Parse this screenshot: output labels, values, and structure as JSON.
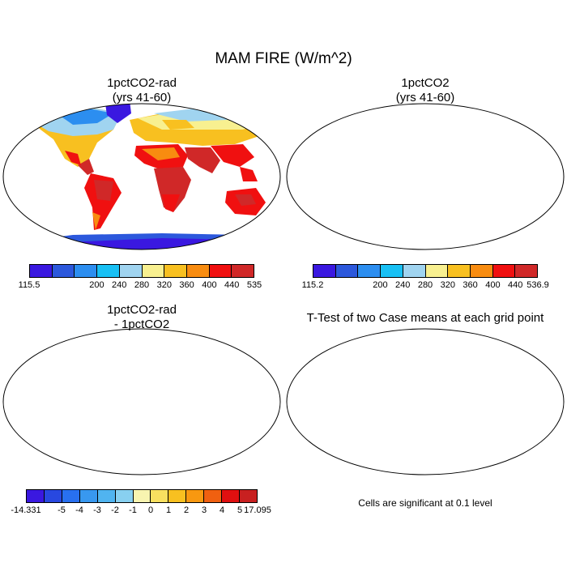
{
  "figure": {
    "title": "MAM FIRE (W/m^2)",
    "note": "Cells are significant at 0.1 level"
  },
  "panels": [
    {
      "title_line1": "1pctCO2-rad",
      "title_line2": "(yrs 41-60)",
      "kind": "field"
    },
    {
      "title_line1": "1pctCO2",
      "title_line2": "(yrs 41-60)",
      "kind": "field"
    },
    {
      "title_line1": "1pctCO2-rad",
      "title_line2": "- 1pctCO2",
      "kind": "difference"
    },
    {
      "title_line1": "T-Test of two Case means at each grid point",
      "title_line2": "",
      "kind": "significance"
    }
  ],
  "colorbars": [
    {
      "colors": [
        "#3a18e0",
        "#2c58dc",
        "#2c8ef0",
        "#18c0f4",
        "#a0d4f0",
        "#f8f090",
        "#f8c020",
        "#f88c10",
        "#f01010",
        "#d02828"
      ],
      "labels": [
        "115.5",
        "200",
        "240",
        "280",
        "320",
        "360",
        "400",
        "440",
        "535"
      ]
    },
    {
      "colors": [
        "#3a18e0",
        "#2c58dc",
        "#2c8ef0",
        "#18c0f4",
        "#a0d4f0",
        "#f8f090",
        "#f8c020",
        "#f88c10",
        "#f01010",
        "#d02828"
      ],
      "labels": [
        "115.2",
        "200",
        "240",
        "280",
        "320",
        "360",
        "400",
        "440",
        "536.9"
      ]
    },
    {
      "colors": [
        "#3a18e0",
        "#2848e0",
        "#2870f0",
        "#3898f0",
        "#50b4f0",
        "#88d0f0",
        "#f8f4b0",
        "#f8e060",
        "#f8c020",
        "#f89810",
        "#f06010",
        "#e01010",
        "#c82020"
      ],
      "labels": [
        "-14.331",
        "-5",
        "-4",
        "-3",
        "-2",
        "-1",
        "0",
        "1",
        "2",
        "3",
        "4",
        "5",
        "17.095"
      ]
    }
  ]
}
